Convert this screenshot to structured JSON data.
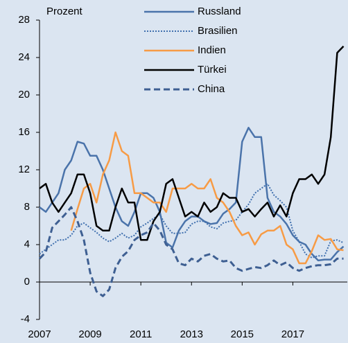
{
  "chart_data": {
    "type": "line",
    "y_label": "Prozent",
    "x": [
      2007,
      2007.25,
      2007.5,
      2007.75,
      2008,
      2008.25,
      2008.5,
      2008.75,
      2009,
      2009.25,
      2009.5,
      2009.75,
      2010,
      2010.25,
      2010.5,
      2010.75,
      2011,
      2011.25,
      2011.5,
      2011.75,
      2012,
      2012.25,
      2012.5,
      2012.75,
      2013,
      2013.25,
      2013.5,
      2013.75,
      2014,
      2014.25,
      2014.5,
      2014.75,
      2015,
      2015.25,
      2015.5,
      2015.75,
      2016,
      2016.25,
      2016.5,
      2016.75,
      2017,
      2017.25,
      2017.5,
      2017.75,
      2018,
      2018.25,
      2018.5,
      2018.75,
      2019
    ],
    "xlim": [
      2007,
      2019.15
    ],
    "xticks": [
      2007,
      2009,
      2011,
      2013,
      2015,
      2017
    ],
    "ylim": [
      -4,
      28
    ],
    "yticks": [
      -4,
      0,
      4,
      8,
      12,
      16,
      20,
      24,
      28
    ],
    "series": [
      {
        "name": "Russland",
        "color": "#4a73aa",
        "style": "solid",
        "values": [
          8,
          7.5,
          8.5,
          9.5,
          12,
          13,
          15,
          14.8,
          13.5,
          13.5,
          12,
          10,
          8,
          6.5,
          6,
          7.5,
          9.5,
          9.5,
          9,
          7.5,
          4.2,
          3.7,
          5.5,
          6.5,
          7,
          7,
          6.5,
          6.2,
          6.3,
          7.3,
          7.8,
          8.5,
          15,
          16.5,
          15.5,
          15.5,
          9,
          7.5,
          7,
          6.2,
          5,
          4.3,
          4,
          3,
          2.3,
          2.4,
          2.4,
          3.2,
          3.8
        ]
      },
      {
        "name": "Brasilien",
        "color": "#3f6fae",
        "style": "dotted",
        "values": [
          3,
          3.5,
          4,
          4.5,
          4.5,
          5,
          6,
          6.3,
          5.8,
          5.3,
          4.7,
          4.3,
          4.7,
          5.2,
          4.7,
          5,
          5.9,
          6.3,
          6.8,
          7.2,
          6,
          5.2,
          5.2,
          5.3,
          6.2,
          6.5,
          6.5,
          5.9,
          5.7,
          6.3,
          6.5,
          6.6,
          7.5,
          8.3,
          9.5,
          10,
          10.5,
          9.3,
          8.7,
          8,
          5.5,
          4.3,
          3,
          2.6,
          2.8,
          2.8,
          4.4,
          4.5,
          4.2
        ]
      },
      {
        "name": "Indien",
        "color": "#f79b45",
        "style": "solid",
        "values": [
          null,
          null,
          null,
          null,
          null,
          5.5,
          7.8,
          10,
          10.5,
          8.5,
          11.5,
          13,
          16,
          14,
          13.5,
          9.5,
          9.5,
          9,
          8.5,
          8.5,
          7.5,
          10,
          10,
          10,
          10.5,
          10,
          10,
          11,
          9,
          8.5,
          7.5,
          6,
          5,
          5.3,
          4,
          5.1,
          5.5,
          5.5,
          6,
          4,
          3.5,
          2,
          2,
          3.3,
          5,
          4.5,
          4.6,
          3.5,
          3.4
        ]
      },
      {
        "name": "Türkei",
        "color": "#000000",
        "style": "solid",
        "values": [
          10,
          10.5,
          8.5,
          7.5,
          8.5,
          9.5,
          11.5,
          11.5,
          9.5,
          6,
          5.5,
          5.5,
          8,
          10,
          8.5,
          8.5,
          4.5,
          4.5,
          6.5,
          7.5,
          10.5,
          11,
          9,
          7,
          7.5,
          7,
          8.5,
          7.5,
          8,
          9.5,
          9,
          9,
          7.5,
          7.8,
          7,
          7.8,
          8.5,
          7,
          8.2,
          7,
          9.5,
          11,
          11,
          11.5,
          10.5,
          11.5,
          15.5,
          24.5,
          25.2
        ]
      },
      {
        "name": "China",
        "color": "#3e5f92",
        "style": "dashed",
        "values": [
          2.5,
          3.2,
          5.8,
          6.5,
          7.2,
          8,
          6.5,
          4.5,
          1,
          -1,
          -1.5,
          -0.8,
          1.5,
          2.7,
          3.3,
          4.5,
          5,
          5.3,
          6.3,
          5.5,
          4,
          3.5,
          2,
          1.8,
          2.5,
          2.2,
          2.8,
          3,
          2.5,
          2.2,
          2.3,
          1.5,
          1.2,
          1.4,
          1.6,
          1.5,
          1.8,
          2.3,
          1.8,
          2.1,
          1.5,
          1.2,
          1.5,
          1.7,
          1.8,
          1.8,
          1.9,
          2.5,
          2.5
        ]
      }
    ]
  }
}
